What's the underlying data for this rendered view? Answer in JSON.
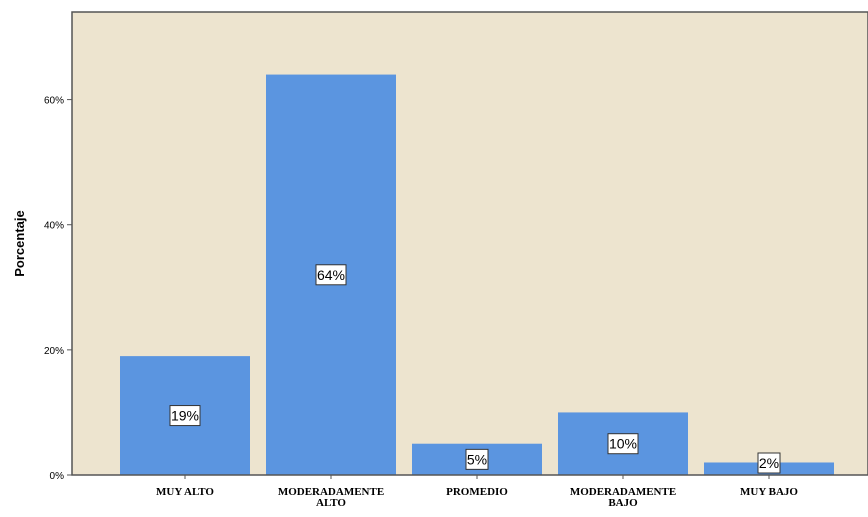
{
  "chart_data": {
    "type": "bar",
    "categories": [
      "MUY ALTO",
      "MODERADAMENTE ALTO",
      "PROMEDIO",
      "MODERADAMENTE BAJO",
      "MUY BAJO"
    ],
    "category_label_lines": [
      [
        "MUY ALTO"
      ],
      [
        "MODERADAMENTE",
        "ALTO"
      ],
      [
        "PROMEDIO"
      ],
      [
        "MODERADAMENTE",
        "BAJO"
      ],
      [
        "MUY BAJO"
      ]
    ],
    "values": [
      19,
      64,
      5,
      10,
      2
    ],
    "data_labels": [
      "19%",
      "64%",
      "5%",
      "10%",
      "2%"
    ],
    "ylabel": "Porcentaje",
    "xlabel": "",
    "ylim": [
      0,
      74
    ],
    "yticks": [
      0,
      20,
      40,
      60
    ],
    "ytick_labels": [
      "0%",
      "20%",
      "40%",
      "60%"
    ],
    "grid": false,
    "colors": {
      "plot_background": "#ede4cf",
      "bar_fill": "#5b95e0",
      "axis_line": "#555555",
      "label_box_fill": "#ffffff"
    }
  }
}
